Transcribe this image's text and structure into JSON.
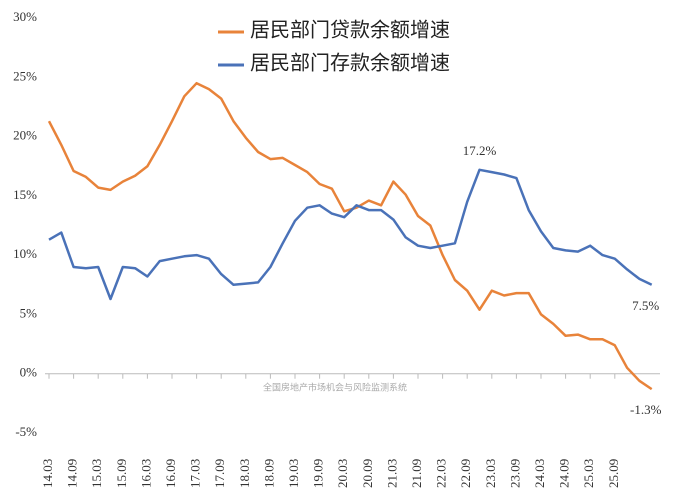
{
  "chart_data": {
    "type": "line",
    "watermark": "全国房地产市场机会与风险监测系统",
    "categories": [
      "14.03",
      null,
      "14.09",
      null,
      "15.03",
      null,
      "15.09",
      null,
      "16.03",
      null,
      "16.09",
      null,
      "17.03",
      null,
      "17.09",
      null,
      "18.03",
      null,
      "18.09",
      null,
      "19.03",
      null,
      "19.09",
      null,
      "20.03",
      null,
      "20.09",
      null,
      "21.03",
      null,
      "21.09",
      null,
      "22.03",
      null,
      "22.09",
      null,
      "23.03",
      null,
      "23.09",
      null,
      "24.03",
      null,
      "24.09",
      null,
      "25.03",
      null,
      "25.09",
      null,
      null,
      null
    ],
    "series": [
      {
        "name": "居民部门贷款余额增速",
        "color": "#E8833A",
        "values": [
          21.3,
          19.3,
          17.1,
          16.6,
          15.7,
          15.5,
          16.2,
          16.7,
          17.5,
          19.3,
          21.3,
          23.4,
          24.5,
          24.0,
          23.2,
          21.3,
          19.9,
          18.7,
          18.1,
          18.2,
          17.6,
          17.0,
          16.0,
          15.6,
          13.7,
          14.0,
          14.6,
          14.2,
          16.2,
          15.1,
          13.3,
          12.5,
          10.0,
          7.9,
          7.0,
          5.4,
          7.0,
          6.6,
          6.8,
          6.8,
          5.0,
          4.2,
          3.2,
          3.3,
          2.9,
          2.9,
          2.4,
          0.5,
          -0.6,
          -1.3
        ],
        "value_labels": [
          null,
          null,
          null,
          null,
          null,
          null,
          null,
          null,
          null,
          null,
          null,
          null,
          null,
          null,
          null,
          null,
          null,
          null,
          null,
          null,
          null,
          null,
          null,
          null,
          null,
          null,
          null,
          null,
          null,
          null,
          null,
          null,
          null,
          null,
          null,
          null,
          null,
          null,
          null,
          null,
          null,
          null,
          null,
          null,
          null,
          null,
          null,
          null,
          null,
          "-1.3%"
        ]
      },
      {
        "name": "居民部门存款余额增速",
        "color": "#4A72B8",
        "values": [
          11.3,
          11.9,
          9.0,
          8.9,
          9.0,
          6.3,
          9.0,
          8.9,
          8.2,
          9.5,
          9.7,
          9.9,
          10.0,
          9.7,
          8.4,
          7.5,
          7.6,
          7.7,
          9.0,
          11.0,
          12.9,
          14.0,
          14.2,
          13.5,
          13.2,
          14.2,
          13.8,
          13.8,
          13.0,
          11.5,
          10.8,
          10.6,
          10.8,
          11.0,
          14.5,
          17.2,
          17.0,
          16.8,
          16.5,
          13.8,
          12.0,
          10.6,
          10.4,
          10.3,
          10.8,
          10.0,
          9.7,
          8.8,
          8.0,
          7.5
        ],
        "value_labels": [
          null,
          null,
          null,
          null,
          null,
          null,
          null,
          null,
          null,
          null,
          null,
          null,
          null,
          null,
          null,
          null,
          null,
          null,
          null,
          null,
          null,
          null,
          null,
          null,
          null,
          null,
          null,
          null,
          null,
          null,
          null,
          null,
          null,
          null,
          null,
          "17.2%",
          null,
          null,
          null,
          null,
          null,
          null,
          null,
          null,
          null,
          null,
          null,
          null,
          null,
          "7.5%"
        ]
      }
    ],
    "ylim": [
      -5,
      30
    ],
    "yticks": [
      {
        "value": -5,
        "label": "-5%"
      },
      {
        "value": 0,
        "label": "0%"
      },
      {
        "value": 5,
        "label": "5%"
      },
      {
        "value": 10,
        "label": "10%"
      },
      {
        "value": 15,
        "label": "15%"
      },
      {
        "value": 20,
        "label": "20%"
      },
      {
        "value": 25,
        "label": "25%"
      },
      {
        "value": 30,
        "label": "30%"
      }
    ],
    "legend": "top",
    "grid": false
  }
}
